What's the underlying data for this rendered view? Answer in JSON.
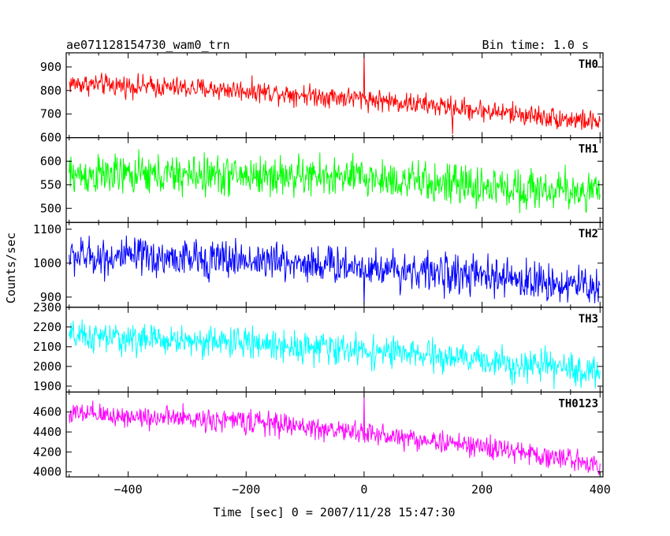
{
  "header": {
    "title": "ae071128154730_wam0_trn",
    "bin_time": "Bin time: 1.0 s"
  },
  "axes": {
    "xlabel": "Time [sec] 0 = 2007/11/28 15:47:30",
    "ylabel": "Counts/sec"
  },
  "chart_data": {
    "type": "line",
    "title": "ae071128154730_wam0_trn",
    "subtitle": "Bin time: 1.0 s",
    "xlabel": "Time [sec] 0 = 2007/11/28 15:47:30",
    "ylabel": "Counts/sec",
    "xlim": [
      -505,
      405
    ],
    "x_ticks": [
      -400,
      -200,
      0,
      200,
      400
    ],
    "x_start": -500,
    "x_end": 400,
    "x_step": 1,
    "grid": false,
    "legend": "none",
    "panels": [
      {
        "name": "TH0",
        "color": "#ff0000",
        "ylim": [
          600,
          960
        ],
        "y_ticks": [
          600,
          700,
          800,
          900
        ],
        "trend": [
          {
            "x": -500,
            "y": 830
          },
          {
            "x": -200,
            "y": 800
          },
          {
            "x": 0,
            "y": 765
          },
          {
            "x": 200,
            "y": 715
          },
          {
            "x": 400,
            "y": 665
          }
        ],
        "noise": 32,
        "spikes": [
          {
            "x": 0,
            "y": 960
          },
          {
            "x": 150,
            "y": 615
          }
        ]
      },
      {
        "name": "TH1",
        "color": "#00ff00",
        "ylim": [
          470,
          650
        ],
        "y_ticks": [
          500,
          550,
          600
        ],
        "trend": [
          {
            "x": -500,
            "y": 570
          },
          {
            "x": -200,
            "y": 570
          },
          {
            "x": 0,
            "y": 565
          },
          {
            "x": 200,
            "y": 545
          },
          {
            "x": 400,
            "y": 535
          }
        ],
        "noise": 30,
        "spikes": []
      },
      {
        "name": "TH2",
        "color": "#0000ff",
        "ylim": [
          870,
          1120
        ],
        "y_ticks": [
          900,
          1000,
          1100
        ],
        "trend": [
          {
            "x": -500,
            "y": 1020
          },
          {
            "x": -200,
            "y": 1010
          },
          {
            "x": 0,
            "y": 990
          },
          {
            "x": 200,
            "y": 960
          },
          {
            "x": 400,
            "y": 930
          }
        ],
        "noise": 40,
        "spikes": [
          {
            "x": 0,
            "y": 875
          }
        ]
      },
      {
        "name": "TH3",
        "color": "#00ffff",
        "ylim": [
          1870,
          2300
        ],
        "y_ticks": [
          1900,
          2000,
          2100,
          2200,
          2300
        ],
        "trend": [
          {
            "x": -500,
            "y": 2150
          },
          {
            "x": -200,
            "y": 2120
          },
          {
            "x": 0,
            "y": 2080
          },
          {
            "x": 200,
            "y": 2030
          },
          {
            "x": 400,
            "y": 1970
          }
        ],
        "noise": 55,
        "spikes": []
      },
      {
        "name": "TH0123",
        "color": "#ff00ff",
        "ylim": [
          3950,
          4800
        ],
        "y_ticks": [
          4000,
          4200,
          4400,
          4600
        ],
        "trend": [
          {
            "x": -500,
            "y": 4580
          },
          {
            "x": -200,
            "y": 4510
          },
          {
            "x": 0,
            "y": 4390
          },
          {
            "x": 200,
            "y": 4250
          },
          {
            "x": 400,
            "y": 4080
          }
        ],
        "noise": 80,
        "spikes": [
          {
            "x": 0,
            "y": 4790
          }
        ]
      }
    ]
  }
}
